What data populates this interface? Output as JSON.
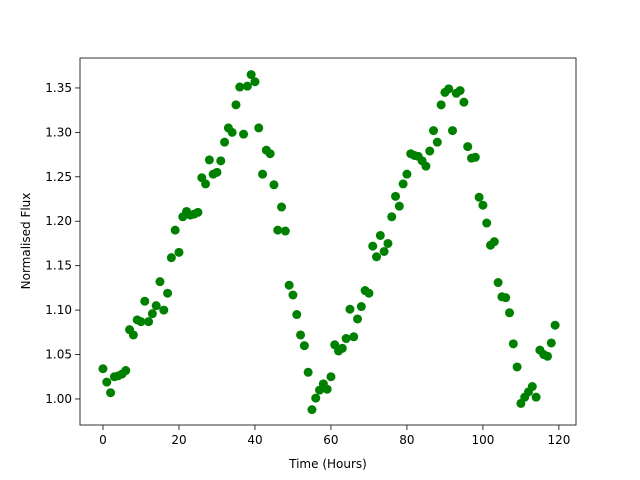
{
  "chart_data": {
    "type": "scatter",
    "xlabel": "Time (Hours)",
    "ylabel": "Normalised Flux",
    "color": "#008000",
    "x": [
      0,
      1,
      2,
      3,
      4,
      5,
      6,
      7,
      8,
      9,
      10,
      11,
      12,
      13,
      14,
      15,
      16,
      17,
      18,
      19,
      20,
      21,
      22,
      23,
      24,
      25,
      26,
      27,
      28,
      29,
      30,
      31,
      32,
      33,
      34,
      35,
      36,
      37,
      38,
      39,
      40,
      41,
      42,
      43,
      44,
      45,
      46,
      47,
      48,
      49,
      50,
      51,
      52,
      53,
      54,
      55,
      56,
      57,
      58,
      59,
      60,
      61,
      62,
      63,
      64,
      65,
      66,
      67,
      68,
      69,
      70,
      71,
      72,
      73,
      74,
      75,
      76,
      77,
      78,
      79,
      80,
      81,
      82,
      83,
      84,
      85,
      86,
      87,
      88,
      89,
      90,
      91,
      92,
      93,
      94,
      95,
      96,
      97,
      98,
      99,
      100,
      101,
      102,
      103,
      104,
      105,
      106,
      107,
      108,
      109,
      110,
      111,
      112,
      113,
      114,
      115,
      116,
      117,
      118,
      119
    ],
    "values": [
      1.034,
      1.019,
      1.007,
      1.025,
      1.026,
      1.028,
      1.032,
      1.078,
      1.072,
      1.089,
      1.087,
      1.11,
      1.087,
      1.096,
      1.105,
      1.132,
      1.1,
      1.119,
      1.159,
      1.19,
      1.165,
      1.205,
      1.211,
      1.207,
      1.208,
      1.21,
      1.249,
      1.242,
      1.269,
      1.253,
      1.255,
      1.268,
      1.289,
      1.305,
      1.3,
      1.331,
      1.351,
      1.298,
      1.352,
      1.365,
      1.357,
      1.305,
      1.253,
      1.28,
      1.276,
      1.241,
      1.19,
      1.216,
      1.189,
      1.128,
      1.117,
      1.095,
      1.072,
      1.06,
      1.03,
      0.988,
      1.001,
      1.01,
      1.017,
      1.011,
      1.025,
      1.061,
      1.054,
      1.057,
      1.068,
      1.101,
      1.07,
      1.09,
      1.104,
      1.122,
      1.119,
      1.172,
      1.16,
      1.184,
      1.166,
      1.175,
      1.205,
      1.228,
      1.217,
      1.242,
      1.253,
      1.276,
      1.274,
      1.273,
      1.268,
      1.262,
      1.279,
      1.302,
      1.289,
      1.331,
      1.345,
      1.349,
      1.302,
      1.344,
      1.347,
      1.334,
      1.284,
      1.271,
      1.272,
      1.227,
      1.218,
      1.198,
      1.173,
      1.177,
      1.131,
      1.115,
      1.114,
      1.097,
      1.062,
      1.036,
      0.995,
      1.002,
      1.008,
      1.014,
      1.002,
      1.055,
      1.05,
      1.048,
      1.063,
      1.083
    ],
    "xlim": [
      -6.05,
      124.5
    ],
    "ylim": [
      0.9707,
      1.3837
    ],
    "xticks": [
      0,
      20,
      40,
      60,
      80,
      100,
      120
    ],
    "yticks": [
      {
        "value": 1.0,
        "label": "1.00"
      },
      1.05,
      {
        "value": 1.1,
        "label": "1.10"
      },
      1.15,
      {
        "value": 1.2,
        "label": "1.20"
      },
      1.25,
      {
        "value": 1.3,
        "label": "1.30"
      },
      1.35
    ]
  }
}
